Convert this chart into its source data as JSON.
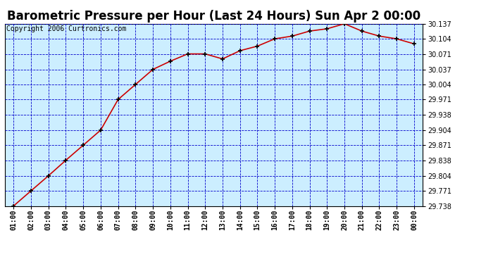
{
  "title": "Barometric Pressure per Hour (Last 24 Hours) Sun Apr 2 00:00",
  "copyright": "Copyright 2006 Curtronics.com",
  "x_labels": [
    "01:00",
    "02:00",
    "03:00",
    "04:00",
    "05:00",
    "06:00",
    "07:00",
    "08:00",
    "09:00",
    "10:00",
    "11:00",
    "12:00",
    "13:00",
    "14:00",
    "15:00",
    "16:00",
    "17:00",
    "18:00",
    "19:00",
    "20:00",
    "21:00",
    "22:00",
    "23:00",
    "00:00"
  ],
  "y_values": [
    29.738,
    29.771,
    29.804,
    29.838,
    29.871,
    29.904,
    29.971,
    30.004,
    30.037,
    30.055,
    30.071,
    30.071,
    30.06,
    30.078,
    30.088,
    30.104,
    30.11,
    30.121,
    30.126,
    30.137,
    30.121,
    30.11,
    30.104,
    30.093
  ],
  "y_ticks": [
    29.738,
    29.771,
    29.804,
    29.838,
    29.871,
    29.904,
    29.938,
    29.971,
    30.004,
    30.037,
    30.071,
    30.104,
    30.137
  ],
  "y_min": 29.738,
  "y_max": 30.137,
  "line_color": "#cc0000",
  "marker_color": "#000000",
  "bg_color": "#ffffff",
  "plot_bg_color": "#cceeff",
  "grid_color": "#0000cc",
  "title_fontsize": 12,
  "copyright_fontsize": 7,
  "tick_fontsize": 7
}
